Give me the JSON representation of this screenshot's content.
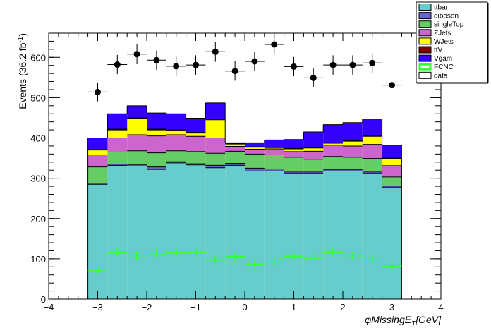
{
  "chart_data": {
    "type": "bar",
    "stacked": true,
    "xlabel": "φMissingE",
    "xlabel_sub": "T",
    "xlabel_unit": "[GeV]",
    "ylabel": "Events (36.2 fb",
    "ylabel_sup": "-1",
    "ylabel_close": ")",
    "xlim": [
      -4,
      4
    ],
    "ylim": [
      0,
      660
    ],
    "x_ticks": [
      -4,
      -3,
      -2,
      -1,
      0,
      1,
      2,
      3,
      4
    ],
    "y_ticks": [
      0,
      100,
      200,
      300,
      400,
      500,
      600
    ],
    "bin_edges": [
      -3.2,
      -2.8,
      -2.4,
      -2.0,
      -1.6,
      -1.2,
      -0.8,
      -0.4,
      0.0,
      0.4,
      0.8,
      1.2,
      1.6,
      2.0,
      2.4,
      2.8,
      3.2
    ],
    "series": [
      {
        "name": "ttbar",
        "color": "#66cccc",
        "values": [
          285,
          332,
          330,
          322,
          338,
          333,
          326,
          332,
          318,
          318,
          313,
          313,
          318,
          318,
          313,
          278
        ]
      },
      {
        "name": "diboson",
        "color": "#6666cc",
        "values": [
          3,
          3,
          3,
          6,
          3,
          3,
          6,
          5,
          7,
          5,
          4,
          4,
          4,
          4,
          4,
          3
        ]
      },
      {
        "name": "singleTop",
        "color": "#66cc66",
        "values": [
          40,
          30,
          35,
          35,
          27,
          30,
          30,
          30,
          35,
          35,
          35,
          30,
          32,
          30,
          32,
          22
        ]
      },
      {
        "name": "ZJets",
        "color": "#cc66cc",
        "values": [
          30,
          35,
          40,
          42,
          40,
          38,
          38,
          12,
          12,
          15,
          14,
          20,
          28,
          28,
          35,
          28
        ]
      },
      {
        "name": "WJets",
        "color": "#ffff00",
        "values": [
          12,
          20,
          40,
          15,
          10,
          8,
          45,
          6,
          5,
          3,
          7,
          8,
          5,
          12,
          20,
          18
        ]
      },
      {
        "name": "ttV",
        "color": "#800000",
        "values": [
          1,
          2,
          2,
          2,
          2,
          2,
          2,
          1,
          1,
          1,
          1,
          1,
          1,
          1,
          1,
          1
        ]
      },
      {
        "name": "Vgam",
        "color": "#3300ff",
        "values": [
          29,
          38,
          30,
          40,
          40,
          35,
          40,
          2,
          10,
          18,
          22,
          39,
          45,
          45,
          42,
          32
        ]
      }
    ],
    "fcnc": {
      "name": "FCNC",
      "color": "#33ff33",
      "values": [
        72,
        117,
        108,
        113,
        116,
        116,
        97,
        105,
        86,
        93,
        106,
        102,
        116,
        108,
        98,
        82
      ],
      "errors": [
        10,
        10,
        10,
        10,
        10,
        10,
        10,
        10,
        10,
        10,
        10,
        10,
        10,
        10,
        10,
        10
      ]
    },
    "data": {
      "name": "data",
      "values": [
        514,
        582,
        608,
        593,
        578,
        581,
        614,
        566,
        590,
        632,
        577,
        549,
        581,
        581,
        586,
        531
      ],
      "errors": [
        23,
        24,
        25,
        24,
        24,
        24,
        25,
        24,
        24,
        25,
        24,
        23,
        24,
        24,
        24,
        23
      ]
    },
    "legend_position": "top-right",
    "legend": [
      {
        "label": "ttbar",
        "color": "#66cccc",
        "style": "fill"
      },
      {
        "label": "diboson",
        "color": "#6666cc",
        "style": "fill"
      },
      {
        "label": "singleTop",
        "color": "#66cc66",
        "style": "fill"
      },
      {
        "label": "ZJets",
        "color": "#cc66cc",
        "style": "fill"
      },
      {
        "label": "WJets",
        "color": "#ffff00",
        "style": "fill"
      },
      {
        "label": "ttV",
        "color": "#800000",
        "style": "fill"
      },
      {
        "label": "Vgam",
        "color": "#3300ff",
        "style": "fill"
      },
      {
        "label": "FCNC",
        "color": "#33ff33",
        "style": "hollow"
      },
      {
        "label": "data",
        "color": "#ffffff",
        "style": "fill"
      }
    ]
  }
}
